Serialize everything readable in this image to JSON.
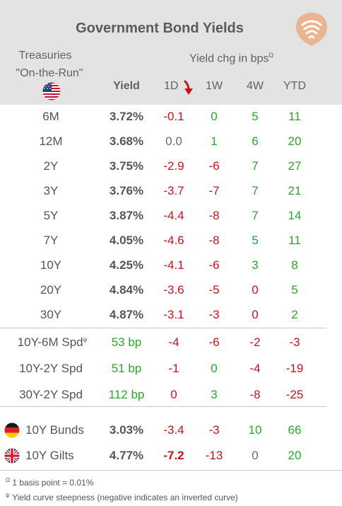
{
  "title": "Government Bond Yields",
  "header": {
    "left_line1": "Treasuries",
    "left_line2": "\"On-the-Run\"",
    "yield_label": "Yield",
    "chg_label": "Yield chg in bps",
    "chg_marker": "Ω",
    "col_1d": "1D",
    "col_1w": "1W",
    "col_4w": "4W",
    "col_ytd": "YTD"
  },
  "treasuries": [
    {
      "name": "6M",
      "yield": "3.72%",
      "d1": "-0.1",
      "w1": "0",
      "w4": "5",
      "ytd": "11"
    },
    {
      "name": "12M",
      "yield": "3.68%",
      "d1": "0.0",
      "w1": "1",
      "w4": "6",
      "ytd": "20"
    },
    {
      "name": "2Y",
      "yield": "3.75%",
      "d1": "-2.9",
      "w1": "-6",
      "w4": "7",
      "ytd": "27"
    },
    {
      "name": "3Y",
      "yield": "3.76%",
      "d1": "-3.7",
      "w1": "-7",
      "w4": "7",
      "ytd": "21"
    },
    {
      "name": "5Y",
      "yield": "3.87%",
      "d1": "-4.4",
      "w1": "-8",
      "w4": "7",
      "ytd": "14"
    },
    {
      "name": "7Y",
      "yield": "4.05%",
      "d1": "-4.6",
      "w1": "-8",
      "w4": "5",
      "ytd": "11"
    },
    {
      "name": "10Y",
      "yield": "4.25%",
      "d1": "-4.1",
      "w1": "-6",
      "w4": "3",
      "ytd": "8"
    },
    {
      "name": "20Y",
      "yield": "4.84%",
      "d1": "-3.6",
      "w1": "-5",
      "w4": "0",
      "ytd": "5"
    },
    {
      "name": "30Y",
      "yield": "4.87%",
      "d1": "-3.1",
      "w1": "-3",
      "w4": "0",
      "ytd": "2"
    }
  ],
  "spreads": [
    {
      "name": "10Y-6M Spd",
      "marker": "ψ",
      "value": "53 bp",
      "d1": "-4",
      "w1": "-6",
      "w4": "-2",
      "ytd": "-3"
    },
    {
      "name": "10Y-2Y Spd",
      "marker": "",
      "value": "51 bp",
      "d1": "-1",
      "w1": "0",
      "w4": "-4",
      "ytd": "-19"
    },
    {
      "name": "30Y-2Y Spd",
      "marker": "",
      "value": "112 bp",
      "d1": "0",
      "w1": "3",
      "w4": "-8",
      "ytd": "-25"
    }
  ],
  "foreign": [
    {
      "name": "10Y Bunds",
      "flag": "germany-flag-icon",
      "yield": "3.03%",
      "d1": "-3.4",
      "w1": "-3",
      "w4": "10",
      "ytd": "66"
    },
    {
      "name": "10Y Gilts",
      "flag": "uk-flag-icon",
      "yield": "4.77%",
      "d1": "-7.2",
      "w1": "-13",
      "w4": "0",
      "ytd": "20"
    }
  ],
  "footnotes": {
    "f1_marker": "Ω",
    "f1_text": "1 basis point = 0.01%",
    "f2_marker": "ψ",
    "f2_text": "Yield curve steepness (negative indicates an inverted curve)"
  },
  "icons": {
    "logo": "wifi-signal-logo-icon",
    "sort": "arrow-down-icon",
    "us_flag": "us-flag-icon"
  },
  "colors": {
    "positive": "#2ba52b",
    "negative": "#c0141c",
    "neutral": "#6b6b6b",
    "header_bg": "#e3e3e3",
    "logo": "#e9b48f"
  }
}
